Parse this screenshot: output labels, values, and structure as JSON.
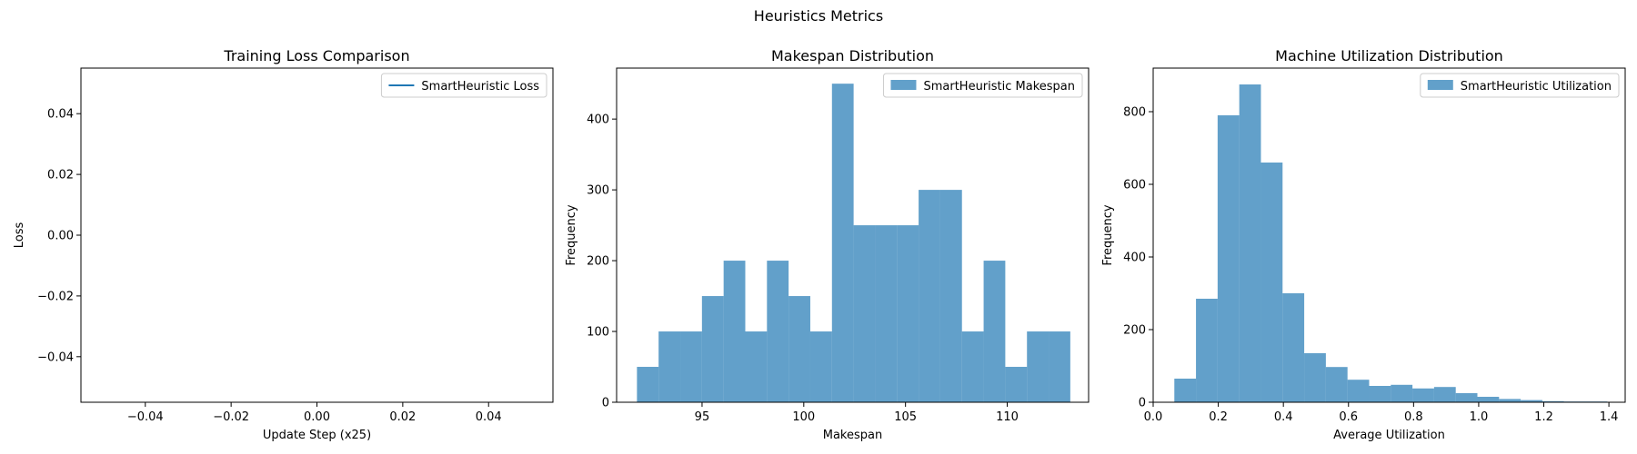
{
  "figure": {
    "suptitle": "Heuristics Metrics"
  },
  "colors": {
    "series": "#1f77b4",
    "bar_fill": "#1f77b4",
    "bar_alpha": 0.7,
    "axis": "#000000",
    "legend_border": "#cccccc"
  },
  "chart_data": [
    {
      "type": "line",
      "title": "Training Loss Comparison",
      "xlabel": "Update Step (x25)",
      "ylabel": "Loss",
      "xlim": [
        -0.055,
        0.055
      ],
      "ylim": [
        -0.055,
        0.055
      ],
      "xticks": [
        -0.04,
        -0.02,
        0.0,
        0.02,
        0.04
      ],
      "xtick_labels": [
        "−0.04",
        "−0.02",
        "0.00",
        "0.02",
        "0.04"
      ],
      "yticks": [
        -0.04,
        -0.02,
        0.0,
        0.02,
        0.04
      ],
      "ytick_labels": [
        "−0.04",
        "−0.02",
        "0.00",
        "0.02",
        "0.04"
      ],
      "grid": false,
      "legend": "top-right",
      "series": [
        {
          "name": "SmartHeuristic Loss",
          "x": [],
          "y": []
        }
      ]
    },
    {
      "type": "bar",
      "title": "Makespan Distribution",
      "xlabel": "Makespan",
      "ylabel": "Frequency",
      "xlim": [
        90.8,
        114.0
      ],
      "ylim": [
        0,
        472
      ],
      "xticks": [
        95,
        100,
        105,
        110
      ],
      "xtick_labels": [
        "95",
        "100",
        "105",
        "110"
      ],
      "yticks": [
        0,
        100,
        200,
        300,
        400
      ],
      "ytick_labels": [
        "0",
        "100",
        "200",
        "300",
        "400"
      ],
      "grid": false,
      "legend": "top-right",
      "series": [
        {
          "name": "SmartHeuristic Makespan",
          "bin_edges": [
            91.8,
            92.865,
            93.93,
            94.995,
            96.06,
            97.125,
            98.19,
            99.255,
            100.32,
            101.385,
            102.45,
            103.515,
            104.58,
            105.645,
            106.71,
            107.775,
            108.84,
            109.905,
            110.97,
            112.035,
            113.1
          ],
          "values": [
            50,
            100,
            100,
            150,
            200,
            100,
            200,
            150,
            100,
            450,
            250,
            250,
            250,
            300,
            300,
            100,
            200,
            50,
            100,
            100
          ]
        }
      ]
    },
    {
      "type": "bar",
      "title": "Machine Utilization Distribution",
      "xlabel": "Average Utilization",
      "ylabel": "Frequency",
      "xlim": [
        0.0,
        1.45
      ],
      "ylim": [
        0,
        920
      ],
      "xticks": [
        0.0,
        0.2,
        0.4,
        0.6,
        0.8,
        1.0,
        1.2,
        1.4
      ],
      "xtick_labels": [
        "0.0",
        "0.2",
        "0.4",
        "0.6",
        "0.8",
        "1.0",
        "1.2",
        "1.4"
      ],
      "yticks": [
        0,
        200,
        400,
        600,
        800
      ],
      "ytick_labels": [
        "0",
        "200",
        "400",
        "600",
        "800"
      ],
      "grid": false,
      "legend": "top-right",
      "series": [
        {
          "name": "SmartHeuristic Utilization",
          "bin_edges": [
            0.065,
            0.1315,
            0.198,
            0.2645,
            0.331,
            0.3975,
            0.464,
            0.5305,
            0.597,
            0.6635,
            0.73,
            0.7965,
            0.863,
            0.9295,
            0.996,
            1.0625,
            1.129,
            1.1955,
            1.262,
            1.3285,
            1.395
          ],
          "values": [
            65,
            285,
            790,
            875,
            660,
            300,
            135,
            97,
            62,
            45,
            48,
            38,
            42,
            25,
            15,
            9,
            6,
            3,
            2,
            2
          ]
        }
      ]
    }
  ]
}
